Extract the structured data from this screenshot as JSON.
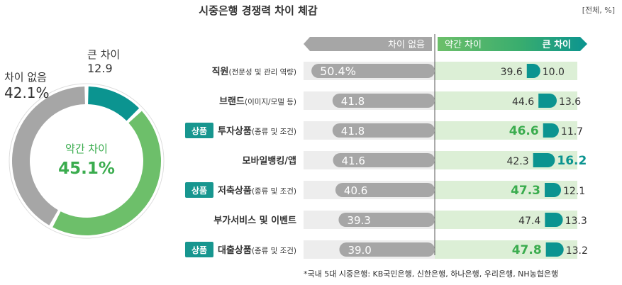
{
  "header": {
    "title": "시중은행 경쟁력 차이 체감",
    "unit": "[전체, %]"
  },
  "colors": {
    "no_diff": "#a6a6a6",
    "slight": "#6dbf6a",
    "big": "#0b9490",
    "slight_bg": "#dcefd6",
    "no_diff_bg": "#ededed",
    "badge": "#17968f",
    "highlight_text": "#3aac4e"
  },
  "legend": {
    "no_diff": "차이 없음",
    "slight": "약간 차이",
    "big": "큰 차이"
  },
  "donut": {
    "slight_label": "약간 차이",
    "slight_value": "45.1%",
    "no_diff_label": "차이 없음",
    "no_diff_value": "42.1%",
    "big_label": "큰 차이",
    "big_value": "12.9"
  },
  "footnote": "*국내 5대 시중은행: KB국민은행, 신한은행, 하나은행, 우리은행, NH농협은행",
  "chart_data": [
    {
      "type": "pie",
      "categories": [
        "약간 차이",
        "차이 없음",
        "큰 차이"
      ],
      "values": [
        45.1,
        42.1,
        12.9
      ]
    },
    {
      "type": "bar",
      "categories": [
        "직원(전문성 및 관리 역량)",
        "브랜드(이미지/모델 등)",
        "투자상품(종류 및 조건)",
        "모바일뱅킹/앱",
        "저축상품(종류 및 조건)",
        "부가서비스 및 이벤트",
        "대출상품(종류 및 조건)"
      ],
      "category_main": [
        "직원",
        "브랜드",
        "투자상품",
        "모바일뱅킹/앱",
        "저축상품",
        "부가서비스 및 이벤트",
        "대출상품"
      ],
      "category_sub": [
        "(전문성 및 관리 역량)",
        "(이미지/모델 등)",
        "(종류 및 조건)",
        "",
        "(종류 및 조건)",
        "",
        "(종류 및 조건)"
      ],
      "badges": [
        "",
        "",
        "상품",
        "",
        "상품",
        "",
        "상품"
      ],
      "series": [
        {
          "name": "차이 없음",
          "values": [
            50.4,
            41.8,
            41.8,
            41.6,
            40.6,
            39.3,
            39.0
          ],
          "labels": [
            "50.4%",
            "41.8",
            "41.8",
            "41.6",
            "40.6",
            "39.3",
            "39.0"
          ]
        },
        {
          "name": "약간 차이",
          "values": [
            39.6,
            44.6,
            46.6,
            42.3,
            47.3,
            47.4,
            47.8
          ],
          "labels": [
            "39.6",
            "44.6",
            "46.6",
            "42.3",
            "47.3",
            "47.4",
            "47.8"
          ]
        },
        {
          "name": "큰 차이",
          "values": [
            10.0,
            13.6,
            11.7,
            16.2,
            12.1,
            13.3,
            13.2
          ],
          "labels": [
            "10.0",
            "13.6",
            "11.7",
            "16.2",
            "12.1",
            "13.3",
            "13.2"
          ]
        }
      ],
      "highlight_slight": [
        false,
        false,
        true,
        false,
        true,
        false,
        true
      ],
      "highlight_big": [
        false,
        false,
        false,
        true,
        false,
        false,
        false
      ]
    }
  ]
}
